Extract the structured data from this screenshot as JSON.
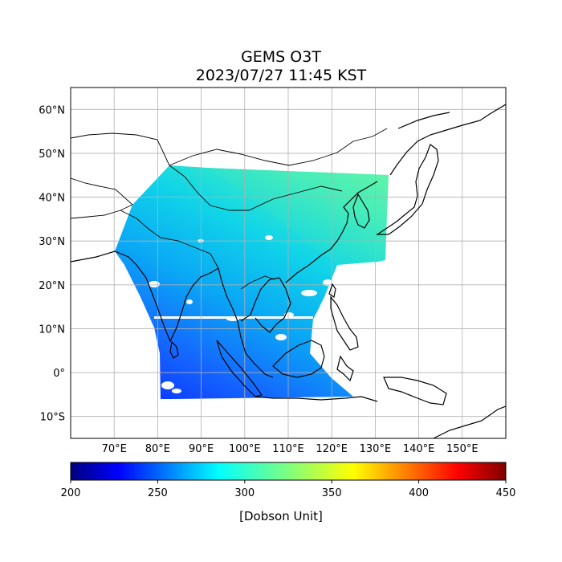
{
  "title": {
    "line1": "GEMS O3T",
    "line2": "2023/07/27 11:45 KST"
  },
  "map": {
    "lat_labels": [
      "60°N",
      "50°N",
      "40°N",
      "30°N",
      "20°N",
      "10°N",
      "0°",
      "10°S"
    ],
    "lon_labels": [
      "70°E",
      "80°E",
      "90°E",
      "100°E",
      "110°E",
      "120°E",
      "130°E",
      "140°E",
      "150°E"
    ],
    "lat_values": [
      60,
      50,
      40,
      30,
      20,
      10,
      0,
      -10
    ],
    "lon_values": [
      70,
      80,
      90,
      100,
      110,
      120,
      130,
      140,
      150
    ],
    "lat_range": [
      -15,
      65
    ],
    "lon_range": [
      60,
      160
    ],
    "grid": true,
    "coastline_color": "#000000",
    "grid_color": "#b0b0b0"
  },
  "colorbar": {
    "ticks": [
      "200",
      "250",
      "300",
      "350",
      "400",
      "450"
    ],
    "tick_values": [
      200,
      250,
      300,
      350,
      400,
      450
    ],
    "range": [
      200,
      450
    ],
    "label": "[Dobson Unit]",
    "colormap": "jet"
  }
}
